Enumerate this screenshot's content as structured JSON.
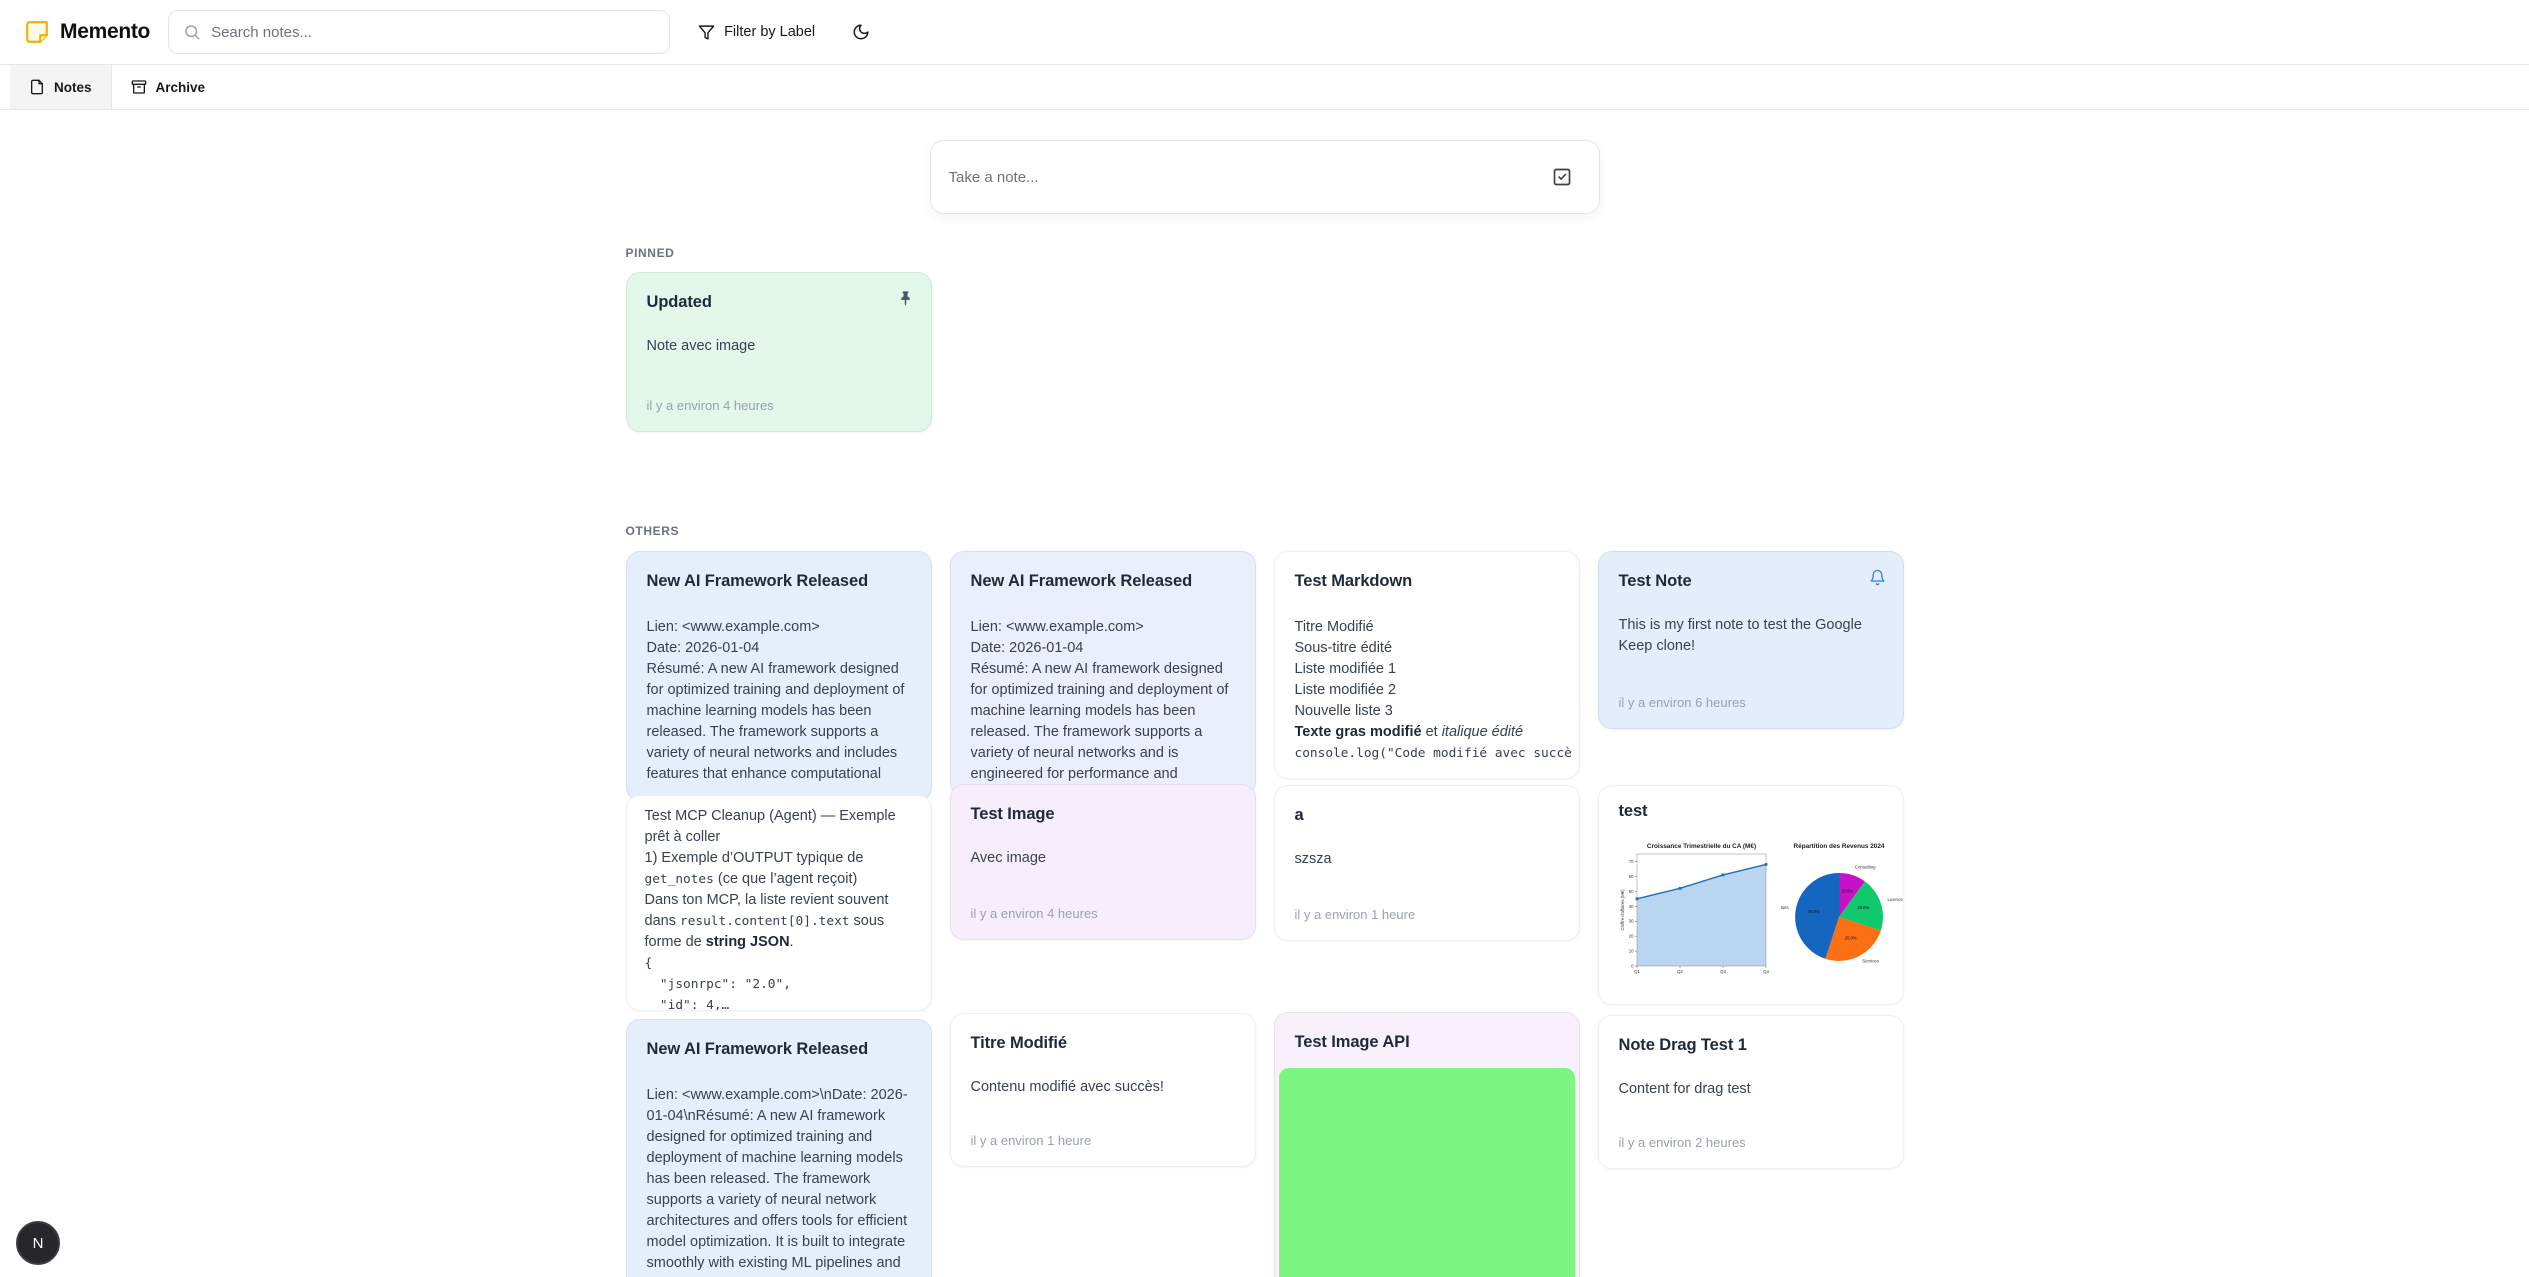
{
  "app": {
    "name": "Memento"
  },
  "header": {
    "search_placeholder": "Search notes...",
    "filter_button": "Filter by Label",
    "icons": [
      "sticky-note-icon",
      "search-icon",
      "filter-icon",
      "moon-icon"
    ]
  },
  "tabs": {
    "notes": "Notes",
    "archive": "Archive"
  },
  "composer": {
    "placeholder": "Take a note...",
    "icon": "check-square-icon"
  },
  "sections": {
    "pinned": "PINNED",
    "others": "OTHERS"
  },
  "colors": {
    "logo_yellow": "#eab308",
    "pinned_green": "#e3f7ea",
    "note_blue": "#e5effc",
    "note_lavender": "#eaeffb",
    "note_pink": "#f6eefa",
    "note_light_purple": "#f8f1fc",
    "note_test_blue": "#e4edfb",
    "white": "#ffffff",
    "image_green": "#7cf680",
    "bell_blue": "#3b82f6",
    "pin_gray": "#475569"
  },
  "pinned_note": {
    "title": "Updated",
    "body": "Note avec image",
    "timestamp": "il y a environ 4 heures",
    "color": "#e3f7ea"
  },
  "notes": {
    "ai_blue": {
      "title": "New AI Framework Released",
      "body": "Lien: <www.example.com>\nDate: 2026-01-04\nRésumé: A new AI framework designed for optimized training and deployment of machine learning models has been released. The framework supports a variety of neural networks and includes features that enhance computational",
      "color": "#e5effc"
    },
    "mcp": {
      "p1": "Test MCP Cleanup (Agent) — Exemple prêt à coller\n1) Exemple d’OUTPUT typique de ",
      "code1": "get_notes",
      "p2": " (ce que l’agent reçoit)\nDans ton MCP, la liste revient souvent dans ",
      "code2": "result.content[0].text",
      "p3": " sous forme de ",
      "bold": "string JSON",
      "p4": ".",
      "codeblock": "\n{\n  \"jsonrpc\": \"2.0\",\n  \"id\": 4,…",
      "color": "#ffffff"
    },
    "ai_newline": {
      "title": "New AI Framework Released",
      "body": "Lien: <www.example.com>\\nDate: 2026-01-04\\nRésumé: A new AI framework designed for optimized training and deployment of machine learning models has been released. The framework supports a variety of neural network architectures and offers tools for efficient model optimization. It is built to integrate smoothly with existing ML pipelines and facilitate MLOps",
      "color": "#e5effc"
    },
    "ai_lavender": {
      "title": "New AI Framework Released",
      "body": "Lien: <www.example.com>\nDate: 2026-01-04\nRésumé: A new AI framework designed for optimized training and deployment of machine learning models has been released. The framework supports a variety of neural networks and is engineered for performance and",
      "color": "#eaeffb"
    },
    "test_image": {
      "title": "Test Image",
      "body": "Avec image",
      "timestamp": "il y a environ 4 heures",
      "color": "#f6eefa"
    },
    "titre_modifie": {
      "title": "Titre Modifié",
      "body": "Contenu modifié avec succès!",
      "timestamp": "il y a environ 1 heure",
      "color": "#ffffff"
    },
    "markdown": {
      "title": "Test Markdown",
      "lines": "Titre Modifié\nSous-titre édité\nListe modifiée 1\nListe modifiée 2\nNouvelle liste 3\n",
      "bold": "Texte gras modifié",
      "mid": " et ",
      "italic": "italique édité",
      "code": "console.log(\"Code modifié avec succè",
      "color": "#ffffff"
    },
    "a_note": {
      "title": "a",
      "body": "szsza",
      "timestamp": "il y a environ 1 heure",
      "color": "#ffffff"
    },
    "image_api": {
      "title": "Test Image API",
      "image": "solid-green-image",
      "image_color": "#7cf680",
      "color": "#f8f1fc"
    },
    "test_note": {
      "title": "Test Note",
      "body": "This is my first note to test the Google Keep clone!",
      "timestamp": "il y a environ 6 heures",
      "color": "#e4edfb"
    },
    "charts_note": {
      "title": "test",
      "color": "#ffffff"
    },
    "drag": {
      "title": "Note Drag Test 1",
      "body": "Content for drag test",
      "timestamp": "il y a environ 2 heures",
      "color": "#ffffff"
    }
  },
  "avatar": {
    "initial": "N"
  },
  "chart_data": [
    {
      "type": "area",
      "title": "Croissance Trimestrielle du CA (M€)",
      "x": [
        "Q1",
        "Q2",
        "Q3",
        "Q4"
      ],
      "values": [
        45,
        52,
        61,
        68
      ],
      "ylabel": "Chiffre d'affaires (M€)",
      "ylim": [
        0,
        75
      ],
      "yticks": [
        0,
        10,
        20,
        30,
        40,
        50,
        60,
        70
      ],
      "line_color": "#1f6fc4",
      "fill_color": "#b9d5ef",
      "grid": false,
      "legend": "none"
    },
    {
      "type": "pie",
      "title": "Répartition des Revenus 2024",
      "labels": [
        "Produits",
        "Services",
        "Licences",
        "Consulting"
      ],
      "values": [
        45.0,
        25.0,
        20.0,
        10.0
      ],
      "colors": [
        "#1566c0",
        "#fd6f13",
        "#10c96c",
        "#c711c7"
      ],
      "start": "top",
      "direction": "clockwise"
    }
  ]
}
